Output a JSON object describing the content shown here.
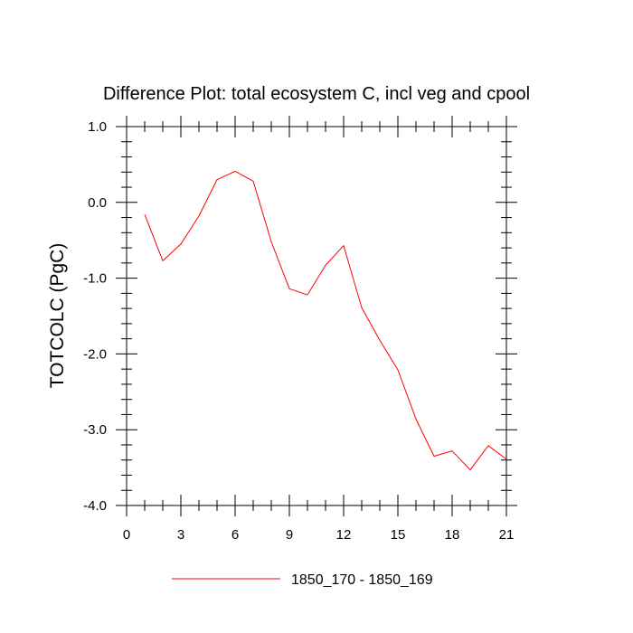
{
  "chart_data": {
    "type": "line",
    "title": "Difference Plot: total ecosystem C, incl veg and cpool",
    "xlabel": "",
    "ylabel": "TOTCOLC  (PgC)",
    "xlim": [
      0,
      21
    ],
    "ylim": [
      -4.0,
      1.0
    ],
    "x_ticks": [
      0,
      3,
      6,
      9,
      12,
      15,
      18,
      21
    ],
    "x_tick_labels": [
      "0",
      "3",
      "6",
      "9",
      "12",
      "15",
      "18",
      "21"
    ],
    "y_ticks": [
      1.0,
      0.0,
      -1.0,
      -2.0,
      -3.0,
      -4.0
    ],
    "y_tick_labels": [
      "1.0",
      "0.0",
      "-1.0",
      "-2.0",
      "-3.0",
      "-4.0"
    ],
    "grid": false,
    "legend_position": "bottom-center",
    "series": [
      {
        "name": "1850_170 - 1850_169",
        "color": "#ff0000",
        "x": [
          1,
          2,
          3,
          4,
          5,
          6,
          7,
          8,
          9,
          10,
          11,
          12,
          13,
          14,
          15,
          16,
          17,
          18,
          19,
          20,
          21
        ],
        "y": [
          -0.16,
          -0.77,
          -0.55,
          -0.18,
          0.3,
          0.41,
          0.28,
          -0.52,
          -1.14,
          -1.22,
          -0.83,
          -0.57,
          -1.39,
          -1.82,
          -2.21,
          -2.86,
          -3.35,
          -3.28,
          -3.53,
          -3.21,
          -3.39
        ]
      }
    ]
  }
}
